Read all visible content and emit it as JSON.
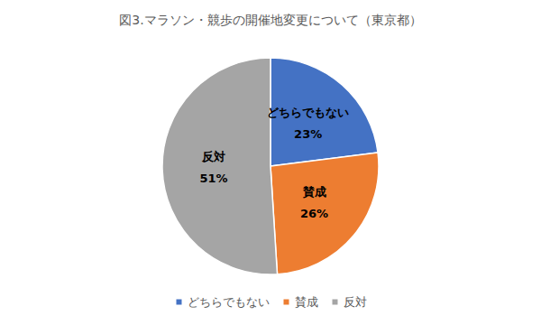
{
  "chart_data": {
    "type": "pie",
    "title": "図3.マラソン・競歩の開催地変更について（東京都）",
    "categories": [
      "どちらでもない",
      "賛成",
      "反対"
    ],
    "values": [
      23,
      26,
      51
    ],
    "value_labels": [
      "23%",
      "26%",
      "51%"
    ],
    "colors": [
      "#4472c4",
      "#ed7d31",
      "#a5a5a5"
    ],
    "data_labels": true,
    "legend": "bottom"
  }
}
